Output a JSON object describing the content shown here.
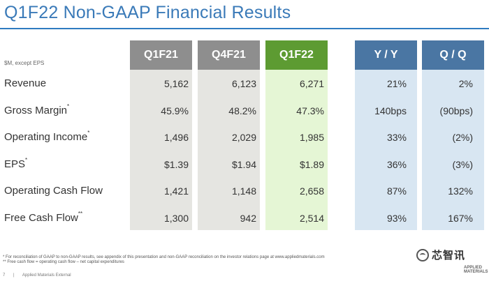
{
  "title": "Q1F22 Non-GAAP Financial Results",
  "unit_note": "$M, except EPS",
  "columns": [
    "Q1F21",
    "Q4F21",
    "Q1F22",
    "Y / Y",
    "Q / Q"
  ],
  "rows": [
    {
      "label": "Revenue",
      "mark": "",
      "values": [
        "5,162",
        "6,123",
        "6,271",
        "21%",
        "2%"
      ]
    },
    {
      "label": "Gross Margin",
      "mark": "*",
      "values": [
        "45.9%",
        "48.2%",
        "47.3%",
        "140bps",
        "(90bps)"
      ]
    },
    {
      "label": "Operating Income",
      "mark": "*",
      "values": [
        "1,496",
        "2,029",
        "1,985",
        "33%",
        "(2%)"
      ]
    },
    {
      "label": "EPS",
      "mark": "*",
      "values": [
        "$1.39",
        "$1.94",
        "$1.89",
        "36%",
        "(3%)"
      ]
    },
    {
      "label": "Operating Cash Flow",
      "mark": "",
      "values": [
        "1,421",
        "1,148",
        "2,658",
        "87%",
        "132%"
      ]
    },
    {
      "label": "Free Cash Flow",
      "mark": "**",
      "values": [
        "1,300",
        "942",
        "2,514",
        "93%",
        "167%"
      ]
    }
  ],
  "footnotes": [
    "*  For reconciliation of GAAP to non-GAAP results, see appendix of this presentation and non-GAAP reconciliation on the investor relations page at www.appliedmaterials.com",
    "**  Free cash flow = operating cash flow – net capital expenditures"
  ],
  "footer": {
    "page_number": "7",
    "classification": "Applied Materials External"
  },
  "watermark": {
    "text": "芯智讯",
    "icon": "wechat-icon"
  },
  "logo": {
    "line1": "APPLIED",
    "line2": "MATERIALS"
  },
  "colors": {
    "title": "#3a7ab8",
    "header_grey": "#8e8e8e",
    "header_green": "#5d9b32",
    "header_blue": "#4a76a3",
    "col_grey": "#e5e5e1",
    "col_green": "#e5f6d5",
    "col_blue": "#d8e6f2"
  }
}
